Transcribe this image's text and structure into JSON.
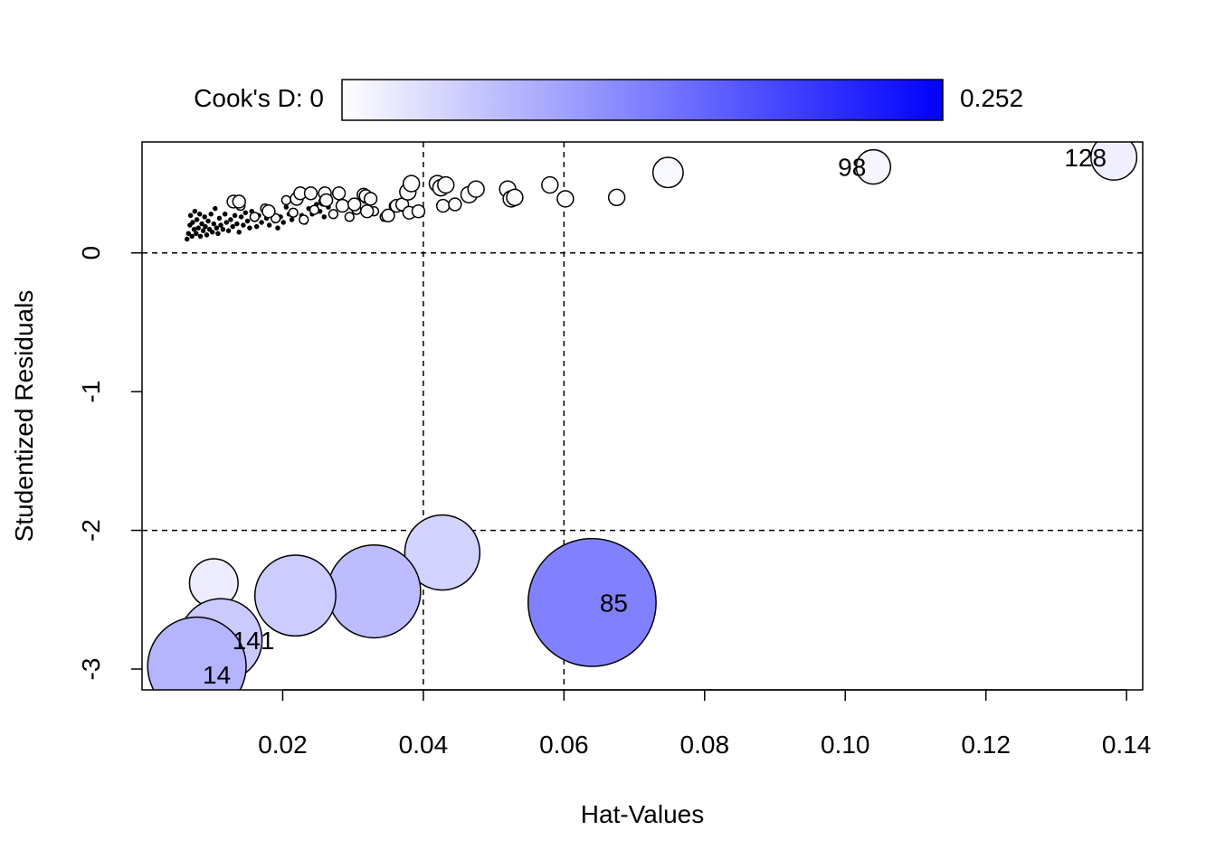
{
  "chart_data": {
    "type": "scatter",
    "xlabel": "Hat-Values",
    "ylabel": "Studentized Residuals",
    "xlim": [
      0.0,
      0.1423
    ],
    "ylim": [
      -3.15,
      0.8
    ],
    "x_ticks": [
      0.02,
      0.04,
      0.06,
      0.08,
      0.1,
      0.12,
      0.14
    ],
    "x_tick_labels": [
      "0.02",
      "0.04",
      "0.06",
      "0.08",
      "0.10",
      "0.12",
      "0.14"
    ],
    "y_ticks": [
      0,
      -1,
      -2,
      -3
    ],
    "y_tick_labels": [
      "0",
      "-1",
      "-2",
      "-3"
    ],
    "reference_lines": {
      "vertical": [
        0.04,
        0.06
      ],
      "horizontal": [
        0,
        -2
      ]
    },
    "size_legend": {
      "label": "Cook's D: 0",
      "max_label": "0.252",
      "min": 0,
      "max": 0.252,
      "color_low": "#ffffff",
      "color_high": "#0000ff"
    },
    "points": [
      {
        "x": 0.0064,
        "y": 0.1,
        "d": 0.0001
      },
      {
        "x": 0.0066,
        "y": 0.14,
        "d": 0.0001
      },
      {
        "x": 0.0068,
        "y": 0.2,
        "d": 0.0001
      },
      {
        "x": 0.0069,
        "y": 0.27,
        "d": 0.0001
      },
      {
        "x": 0.0071,
        "y": 0.12,
        "d": 0.0001
      },
      {
        "x": 0.0072,
        "y": 0.22,
        "d": 0.0001
      },
      {
        "x": 0.0074,
        "y": 0.17,
        "d": 0.0001
      },
      {
        "x": 0.0075,
        "y": 0.3,
        "d": 0.0001
      },
      {
        "x": 0.0077,
        "y": 0.14,
        "d": 0.0001
      },
      {
        "x": 0.0078,
        "y": 0.24,
        "d": 0.0001
      },
      {
        "x": 0.008,
        "y": 0.18,
        "d": 0.0001
      },
      {
        "x": 0.0082,
        "y": 0.28,
        "d": 0.0001
      },
      {
        "x": 0.0083,
        "y": 0.12,
        "d": 0.0001
      },
      {
        "x": 0.0085,
        "y": 0.21,
        "d": 0.0001
      },
      {
        "x": 0.0087,
        "y": 0.16,
        "d": 0.0001
      },
      {
        "x": 0.0089,
        "y": 0.26,
        "d": 0.0001
      },
      {
        "x": 0.009,
        "y": 0.19,
        "d": 0.0001
      },
      {
        "x": 0.0092,
        "y": 0.13,
        "d": 0.0001
      },
      {
        "x": 0.0094,
        "y": 0.23,
        "d": 0.0001
      },
      {
        "x": 0.0096,
        "y": 0.17,
        "d": 0.0001
      },
      {
        "x": 0.0098,
        "y": 0.28,
        "d": 0.0001
      },
      {
        "x": 0.01,
        "y": 0.15,
        "d": 0.0001
      },
      {
        "x": 0.0102,
        "y": 0.21,
        "d": 0.0001
      },
      {
        "x": 0.0104,
        "y": 0.32,
        "d": 0.0001
      },
      {
        "x": 0.0106,
        "y": 0.18,
        "d": 0.0001
      },
      {
        "x": 0.0108,
        "y": 0.14,
        "d": 0.0001
      },
      {
        "x": 0.011,
        "y": 0.25,
        "d": 0.0001
      },
      {
        "x": 0.0112,
        "y": 0.2,
        "d": 0.0001
      },
      {
        "x": 0.0115,
        "y": 0.17,
        "d": 0.0001
      },
      {
        "x": 0.0118,
        "y": 0.28,
        "d": 0.0001
      },
      {
        "x": 0.012,
        "y": 0.22,
        "d": 0.0001
      },
      {
        "x": 0.0123,
        "y": 0.16,
        "d": 0.0001
      },
      {
        "x": 0.0126,
        "y": 0.24,
        "d": 0.0001
      },
      {
        "x": 0.0129,
        "y": 0.19,
        "d": 0.0001
      },
      {
        "x": 0.0132,
        "y": 0.27,
        "d": 0.0001
      },
      {
        "x": 0.0135,
        "y": 0.21,
        "d": 0.0001
      },
      {
        "x": 0.0138,
        "y": 0.15,
        "d": 0.0001
      },
      {
        "x": 0.0141,
        "y": 0.26,
        "d": 0.0001
      },
      {
        "x": 0.0144,
        "y": 0.2,
        "d": 0.0001
      },
      {
        "x": 0.0147,
        "y": 0.29,
        "d": 0.0001
      },
      {
        "x": 0.015,
        "y": 0.23,
        "d": 0.0001
      },
      {
        "x": 0.0153,
        "y": 0.18,
        "d": 0.0001
      },
      {
        "x": 0.0156,
        "y": 0.3,
        "d": 0.0001
      },
      {
        "x": 0.016,
        "y": 0.24,
        "d": 0.0001
      },
      {
        "x": 0.0163,
        "y": 0.19,
        "d": 0.0001
      },
      {
        "x": 0.0166,
        "y": 0.27,
        "d": 0.0001
      },
      {
        "x": 0.017,
        "y": 0.22,
        "d": 0.0001
      },
      {
        "x": 0.0173,
        "y": 0.31,
        "d": 0.0001
      },
      {
        "x": 0.0177,
        "y": 0.25,
        "d": 0.0001
      },
      {
        "x": 0.0181,
        "y": 0.2,
        "d": 0.0001
      },
      {
        "x": 0.0185,
        "y": 0.29,
        "d": 0.0001
      },
      {
        "x": 0.0189,
        "y": 0.23,
        "d": 0.0001
      },
      {
        "x": 0.0193,
        "y": 0.18,
        "d": 0.0001
      },
      {
        "x": 0.0197,
        "y": 0.26,
        "d": 0.0001
      },
      {
        "x": 0.0201,
        "y": 0.22,
        "d": 0.0001
      },
      {
        "x": 0.0205,
        "y": 0.33,
        "d": 0.0001
      },
      {
        "x": 0.0209,
        "y": 0.28,
        "d": 0.0001
      },
      {
        "x": 0.0213,
        "y": 0.24,
        "d": 0.0001
      },
      {
        "x": 0.0218,
        "y": 0.3,
        "d": 0.0001
      },
      {
        "x": 0.0222,
        "y": 0.36,
        "d": 0.0001
      },
      {
        "x": 0.0227,
        "y": 0.27,
        "d": 0.0001
      },
      {
        "x": 0.0232,
        "y": 0.22,
        "d": 0.0001
      },
      {
        "x": 0.0237,
        "y": 0.32,
        "d": 0.0001
      },
      {
        "x": 0.0242,
        "y": 0.28,
        "d": 0.0001
      },
      {
        "x": 0.0248,
        "y": 0.35,
        "d": 0.0001
      },
      {
        "x": 0.0253,
        "y": 0.3,
        "d": 0.0001
      },
      {
        "x": 0.0259,
        "y": 0.26,
        "d": 0.0001
      },
      {
        "x": 0.0265,
        "y": 0.33,
        "d": 0.0001
      },
      {
        "x": 0.014,
        "y": 0.34,
        "d": 0.0006
      },
      {
        "x": 0.016,
        "y": 0.26,
        "d": 0.0006
      },
      {
        "x": 0.0175,
        "y": 0.32,
        "d": 0.0006
      },
      {
        "x": 0.019,
        "y": 0.25,
        "d": 0.0006
      },
      {
        "x": 0.0205,
        "y": 0.38,
        "d": 0.0006
      },
      {
        "x": 0.0215,
        "y": 0.29,
        "d": 0.0006
      },
      {
        "x": 0.023,
        "y": 0.24,
        "d": 0.0006
      },
      {
        "x": 0.0245,
        "y": 0.31,
        "d": 0.0006
      },
      {
        "x": 0.0258,
        "y": 0.37,
        "d": 0.0006
      },
      {
        "x": 0.0272,
        "y": 0.28,
        "d": 0.0006
      },
      {
        "x": 0.0287,
        "y": 0.35,
        "d": 0.0006
      },
      {
        "x": 0.0295,
        "y": 0.26,
        "d": 0.0006
      },
      {
        "x": 0.0305,
        "y": 0.31,
        "d": 0.0006
      },
      {
        "x": 0.0318,
        "y": 0.39,
        "d": 0.0006
      },
      {
        "x": 0.033,
        "y": 0.3,
        "d": 0.0006
      },
      {
        "x": 0.0345,
        "y": 0.26,
        "d": 0.0006
      },
      {
        "x": 0.0358,
        "y": 0.34,
        "d": 0.0006
      },
      {
        "x": 0.0372,
        "y": 0.33,
        "d": 0.0006
      },
      {
        "x": 0.013,
        "y": 0.37,
        "d": 0.0012
      },
      {
        "x": 0.0138,
        "y": 0.37,
        "d": 0.0012
      },
      {
        "x": 0.018,
        "y": 0.3,
        "d": 0.0012
      },
      {
        "x": 0.022,
        "y": 0.39,
        "d": 0.0012
      },
      {
        "x": 0.0225,
        "y": 0.43,
        "d": 0.0012
      },
      {
        "x": 0.024,
        "y": 0.43,
        "d": 0.0012
      },
      {
        "x": 0.026,
        "y": 0.43,
        "d": 0.0012
      },
      {
        "x": 0.0262,
        "y": 0.38,
        "d": 0.0012
      },
      {
        "x": 0.028,
        "y": 0.43,
        "d": 0.0012
      },
      {
        "x": 0.0285,
        "y": 0.34,
        "d": 0.0012
      },
      {
        "x": 0.0302,
        "y": 0.35,
        "d": 0.0012
      },
      {
        "x": 0.0315,
        "y": 0.42,
        "d": 0.0012
      },
      {
        "x": 0.0318,
        "y": 0.41,
        "d": 0.0012
      },
      {
        "x": 0.0325,
        "y": 0.39,
        "d": 0.0012
      },
      {
        "x": 0.032,
        "y": 0.3,
        "d": 0.0012
      },
      {
        "x": 0.035,
        "y": 0.27,
        "d": 0.0012
      },
      {
        "x": 0.0362,
        "y": 0.34,
        "d": 0.0012
      },
      {
        "x": 0.037,
        "y": 0.35,
        "d": 0.0012
      },
      {
        "x": 0.038,
        "y": 0.29,
        "d": 0.0012
      },
      {
        "x": 0.0393,
        "y": 0.3,
        "d": 0.0012
      },
      {
        "x": 0.0428,
        "y": 0.34,
        "d": 0.0012
      },
      {
        "x": 0.0445,
        "y": 0.35,
        "d": 0.0012
      },
      {
        "x": 0.0378,
        "y": 0.44,
        "d": 0.002
      },
      {
        "x": 0.0383,
        "y": 0.5,
        "d": 0.002
      },
      {
        "x": 0.042,
        "y": 0.5,
        "d": 0.002
      },
      {
        "x": 0.0425,
        "y": 0.47,
        "d": 0.002
      },
      {
        "x": 0.0432,
        "y": 0.49,
        "d": 0.002
      },
      {
        "x": 0.0465,
        "y": 0.42,
        "d": 0.002
      },
      {
        "x": 0.0475,
        "y": 0.46,
        "d": 0.002
      },
      {
        "x": 0.052,
        "y": 0.46,
        "d": 0.002
      },
      {
        "x": 0.0525,
        "y": 0.39,
        "d": 0.002
      },
      {
        "x": 0.053,
        "y": 0.4,
        "d": 0.002
      },
      {
        "x": 0.058,
        "y": 0.49,
        "d": 0.002
      },
      {
        "x": 0.0602,
        "y": 0.39,
        "d": 0.002
      },
      {
        "x": 0.0675,
        "y": 0.4,
        "d": 0.002
      },
      {
        "x": 0.0748,
        "y": 0.58,
        "d": 0.007
      },
      {
        "x": 0.104,
        "y": 0.62,
        "d": 0.009,
        "label": "98"
      },
      {
        "x": 0.1382,
        "y": 0.69,
        "d": 0.016,
        "label": "128"
      },
      {
        "x": 0.0427,
        "y": -2.16,
        "d": 0.043
      },
      {
        "x": 0.033,
        "y": -2.44,
        "d": 0.066
      },
      {
        "x": 0.0218,
        "y": -2.47,
        "d": 0.05
      },
      {
        "x": 0.0102,
        "y": -2.38,
        "d": 0.018
      },
      {
        "x": 0.0112,
        "y": -2.79,
        "d": 0.052,
        "label": "141"
      },
      {
        "x": 0.0078,
        "y": -2.98,
        "d": 0.074,
        "label": "14"
      },
      {
        "x": 0.064,
        "y": -2.52,
        "d": 0.125,
        "label": "85"
      }
    ]
  }
}
